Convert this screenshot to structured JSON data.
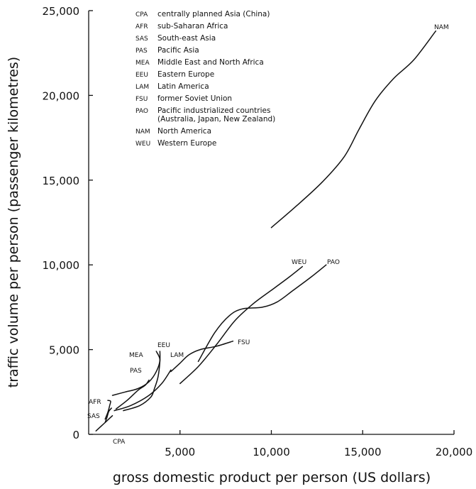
{
  "chart_data": {
    "type": "line",
    "xlabel": "gross domestic product per person  (US dollars)",
    "ylabel": "traffic volume per person (passenger kilometres)",
    "xlim": [
      0,
      20000
    ],
    "ylim": [
      0,
      25000
    ],
    "xticks": [
      {
        "value": 5000,
        "label": "5,000"
      },
      {
        "value": 10000,
        "label": "10,000"
      },
      {
        "value": 15000,
        "label": "15,000"
      },
      {
        "value": 20000,
        "label": "20,000"
      }
    ],
    "yticks": [
      {
        "value": 0,
        "label": "0"
      },
      {
        "value": 5000,
        "label": "5,000"
      },
      {
        "value": 10000,
        "label": "10,000"
      },
      {
        "value": 15000,
        "label": "15,000"
      },
      {
        "value": 20000,
        "label": "20,000"
      },
      {
        "value": 25000,
        "label": "25,000"
      }
    ],
    "legend": {
      "placement": "top-left",
      "entries": [
        {
          "code": "CPA",
          "name": "centrally planned Asia (China)"
        },
        {
          "code": "AFR",
          "name": "sub-Saharan Africa"
        },
        {
          "code": "SAS",
          "name": "South-east Asia"
        },
        {
          "code": "PAS",
          "name": "Pacific Asia"
        },
        {
          "code": "MEA",
          "name": "Middle East and North Africa"
        },
        {
          "code": "EEU",
          "name": "Eastern Europe"
        },
        {
          "code": "LAM",
          "name": "Latin America"
        },
        {
          "code": "FSU",
          "name": "former Soviet Union"
        },
        {
          "code": "PAO",
          "name": "Pacific industrialized countries",
          "name2": "(Australia, Japan, New Zealand)"
        },
        {
          "code": "NAM",
          "name": "North America"
        },
        {
          "code": "WEU",
          "name": "Western Europe"
        }
      ]
    },
    "series": [
      {
        "name": "CPA",
        "points": [
          [
            400,
            200
          ],
          [
            700,
            500
          ],
          [
            1000,
            800
          ],
          [
            1300,
            1100
          ]
        ]
      },
      {
        "name": "AFR",
        "points": [
          [
            900,
            900
          ],
          [
            1050,
            1300
          ],
          [
            1150,
            1700
          ],
          [
            1200,
            1950
          ],
          [
            1050,
            2000
          ]
        ]
      },
      {
        "name": "SAS",
        "points": [
          [
            900,
            700
          ],
          [
            1000,
            1000
          ],
          [
            1100,
            1350
          ],
          [
            1250,
            1550
          ]
        ]
      },
      {
        "name": "PAS",
        "points": [
          [
            1500,
            1500
          ],
          [
            2100,
            2000
          ],
          [
            2700,
            2600
          ],
          [
            3100,
            2900
          ],
          [
            3300,
            3200
          ]
        ]
      },
      {
        "name": "MEA",
        "points": [
          [
            1300,
            2300
          ],
          [
            2000,
            2500
          ],
          [
            2700,
            2700
          ],
          [
            3300,
            3100
          ],
          [
            3700,
            3700
          ],
          [
            3900,
            4400
          ],
          [
            3700,
            4900
          ]
        ]
      },
      {
        "name": "EEU",
        "points": [
          [
            1900,
            1400
          ],
          [
            2800,
            1700
          ],
          [
            3400,
            2200
          ],
          [
            3600,
            2700
          ],
          [
            3800,
            3400
          ],
          [
            3900,
            4300
          ],
          [
            3900,
            4900
          ]
        ]
      },
      {
        "name": "LAM",
        "points": [
          [
            1400,
            1400
          ],
          [
            2300,
            1700
          ],
          [
            3300,
            2300
          ],
          [
            4000,
            3000
          ],
          [
            4500,
            3800
          ]
        ]
      },
      {
        "name": "FSU",
        "points": [
          [
            4500,
            3700
          ],
          [
            5000,
            4200
          ],
          [
            5500,
            4700
          ],
          [
            6100,
            5000
          ],
          [
            7000,
            5200
          ],
          [
            7900,
            5500
          ]
        ]
      },
      {
        "name": "WEU",
        "points": [
          [
            5000,
            3000
          ],
          [
            6000,
            4000
          ],
          [
            7000,
            5300
          ],
          [
            8000,
            6700
          ],
          [
            9000,
            7700
          ],
          [
            10000,
            8500
          ],
          [
            11000,
            9300
          ],
          [
            11700,
            9900
          ]
        ]
      },
      {
        "name": "PAO",
        "points": [
          [
            6000,
            4300
          ],
          [
            6900,
            6000
          ],
          [
            7700,
            7000
          ],
          [
            8400,
            7400
          ],
          [
            9500,
            7500
          ],
          [
            10300,
            7800
          ],
          [
            11200,
            8500
          ],
          [
            12200,
            9300
          ],
          [
            13000,
            10000
          ]
        ]
      },
      {
        "name": "NAM",
        "points": [
          [
            10000,
            12200
          ],
          [
            11400,
            13500
          ],
          [
            12800,
            14900
          ],
          [
            14000,
            16400
          ],
          [
            14800,
            18000
          ],
          [
            15700,
            19700
          ],
          [
            16700,
            21000
          ],
          [
            17800,
            22100
          ],
          [
            19000,
            23800
          ]
        ]
      }
    ]
  }
}
